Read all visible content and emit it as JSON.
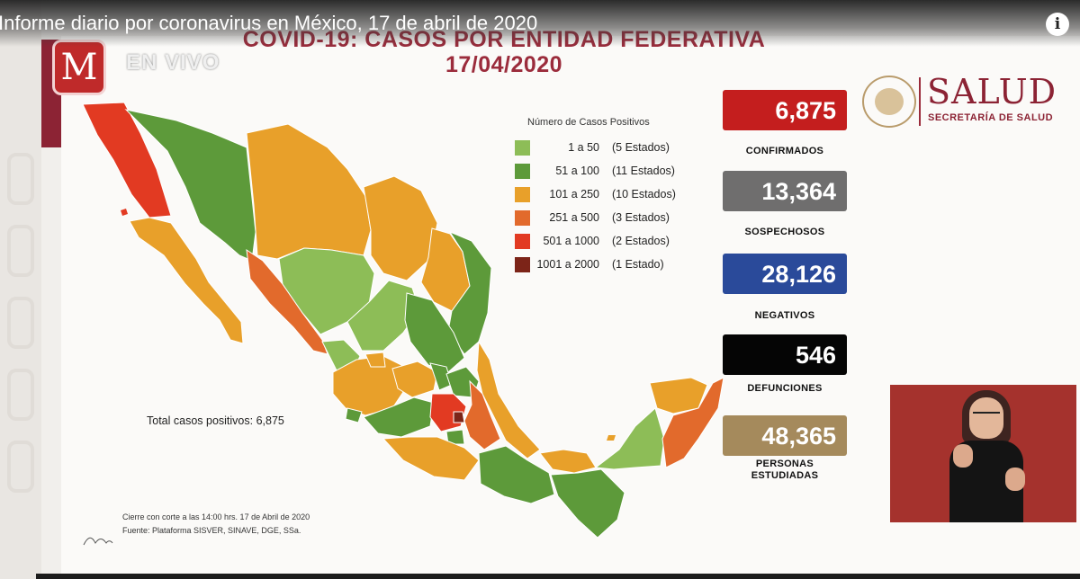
{
  "video": {
    "title": "Informe diario por coronavirus en México, 17 de abril de 2020",
    "info_icon": "i",
    "live_label": "EN VIVO",
    "channel_logo_letter": "M"
  },
  "slide": {
    "title_line1": "COVID-19: CASOS POR ENTIDAD FEDERATIVA",
    "title_line2": "17/04/2020"
  },
  "salud": {
    "name": "SALUD",
    "subtitle": "SECRETARÍA DE SALUD"
  },
  "legend": {
    "title": "Número de Casos Positivos",
    "items": [
      {
        "range": "1 a 50",
        "count": "(5 Estados)",
        "color": "#8dbd57"
      },
      {
        "range": "51 a 100",
        "count": "(11 Estados)",
        "color": "#5d9a3a"
      },
      {
        "range": "101 a 250",
        "count": "(10 Estados)",
        "color": "#e8a02a"
      },
      {
        "range": "251 a 500",
        "count": "(3 Estados)",
        "color": "#e26a2c"
      },
      {
        "range": "501 a 1000",
        "count": "(2 Estados)",
        "color": "#e23a22"
      },
      {
        "range": "1001 a 2000",
        "count": "(1 Estado)",
        "color": "#7c2418"
      }
    ]
  },
  "stats": [
    {
      "value": "6,875",
      "label": "CONFIRMADOS",
      "color": "#c41e1e"
    },
    {
      "value": "13,364",
      "label": "SOSPECHOSOS",
      "color": "#6f6e6e"
    },
    {
      "value": "28,126",
      "label": "NEGATIVOS",
      "color": "#2a4a9a"
    },
    {
      "value": "546",
      "label": "DEFUNCIONES",
      "color": "#050505"
    },
    {
      "value": "48,365",
      "label_line1": "PERSONAS",
      "label_line2": "ESTUDIADAS",
      "color": "#a58a5c"
    }
  ],
  "footer": {
    "total": "Total casos positivos: 6,875",
    "cut": "Cierre con corte a las 14:00 hrs. 17 de Abril de 2020",
    "source": "Fuente: Plataforma SISVER, SINAVE, DGE, SSa."
  }
}
